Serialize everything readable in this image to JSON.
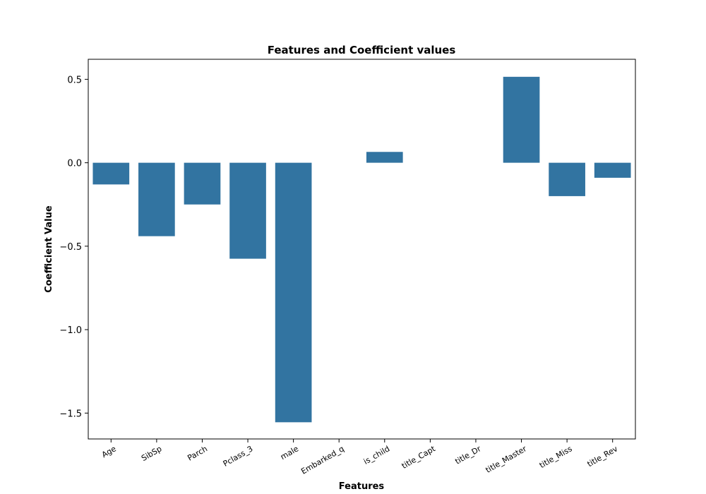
{
  "chart_data": {
    "type": "bar",
    "title": "Features and Coefficient values",
    "xlabel": "Features",
    "ylabel": "Coefficient Value",
    "categories": [
      "Age",
      "SibSp",
      "Parch",
      "Pclass_3",
      "male",
      "Embarked_q",
      "is_child",
      "title_Capt",
      "title_Dr",
      "title_Master",
      "title_Miss",
      "title_Rev"
    ],
    "values": [
      -0.13,
      -0.44,
      -0.25,
      -0.575,
      -1.555,
      0.0,
      0.065,
      0.0,
      0.0,
      0.515,
      -0.2,
      -0.09
    ],
    "ylim": [
      -1.655,
      0.62
    ],
    "yticks": [
      0.5,
      0.0,
      -0.5,
      -1.0,
      -1.5
    ],
    "ytick_labels": [
      "0.5",
      "0.0",
      "−0.5",
      "−1.0",
      "−1.5"
    ],
    "bar_color": "#3274a1",
    "grid": false,
    "legend": false
  }
}
